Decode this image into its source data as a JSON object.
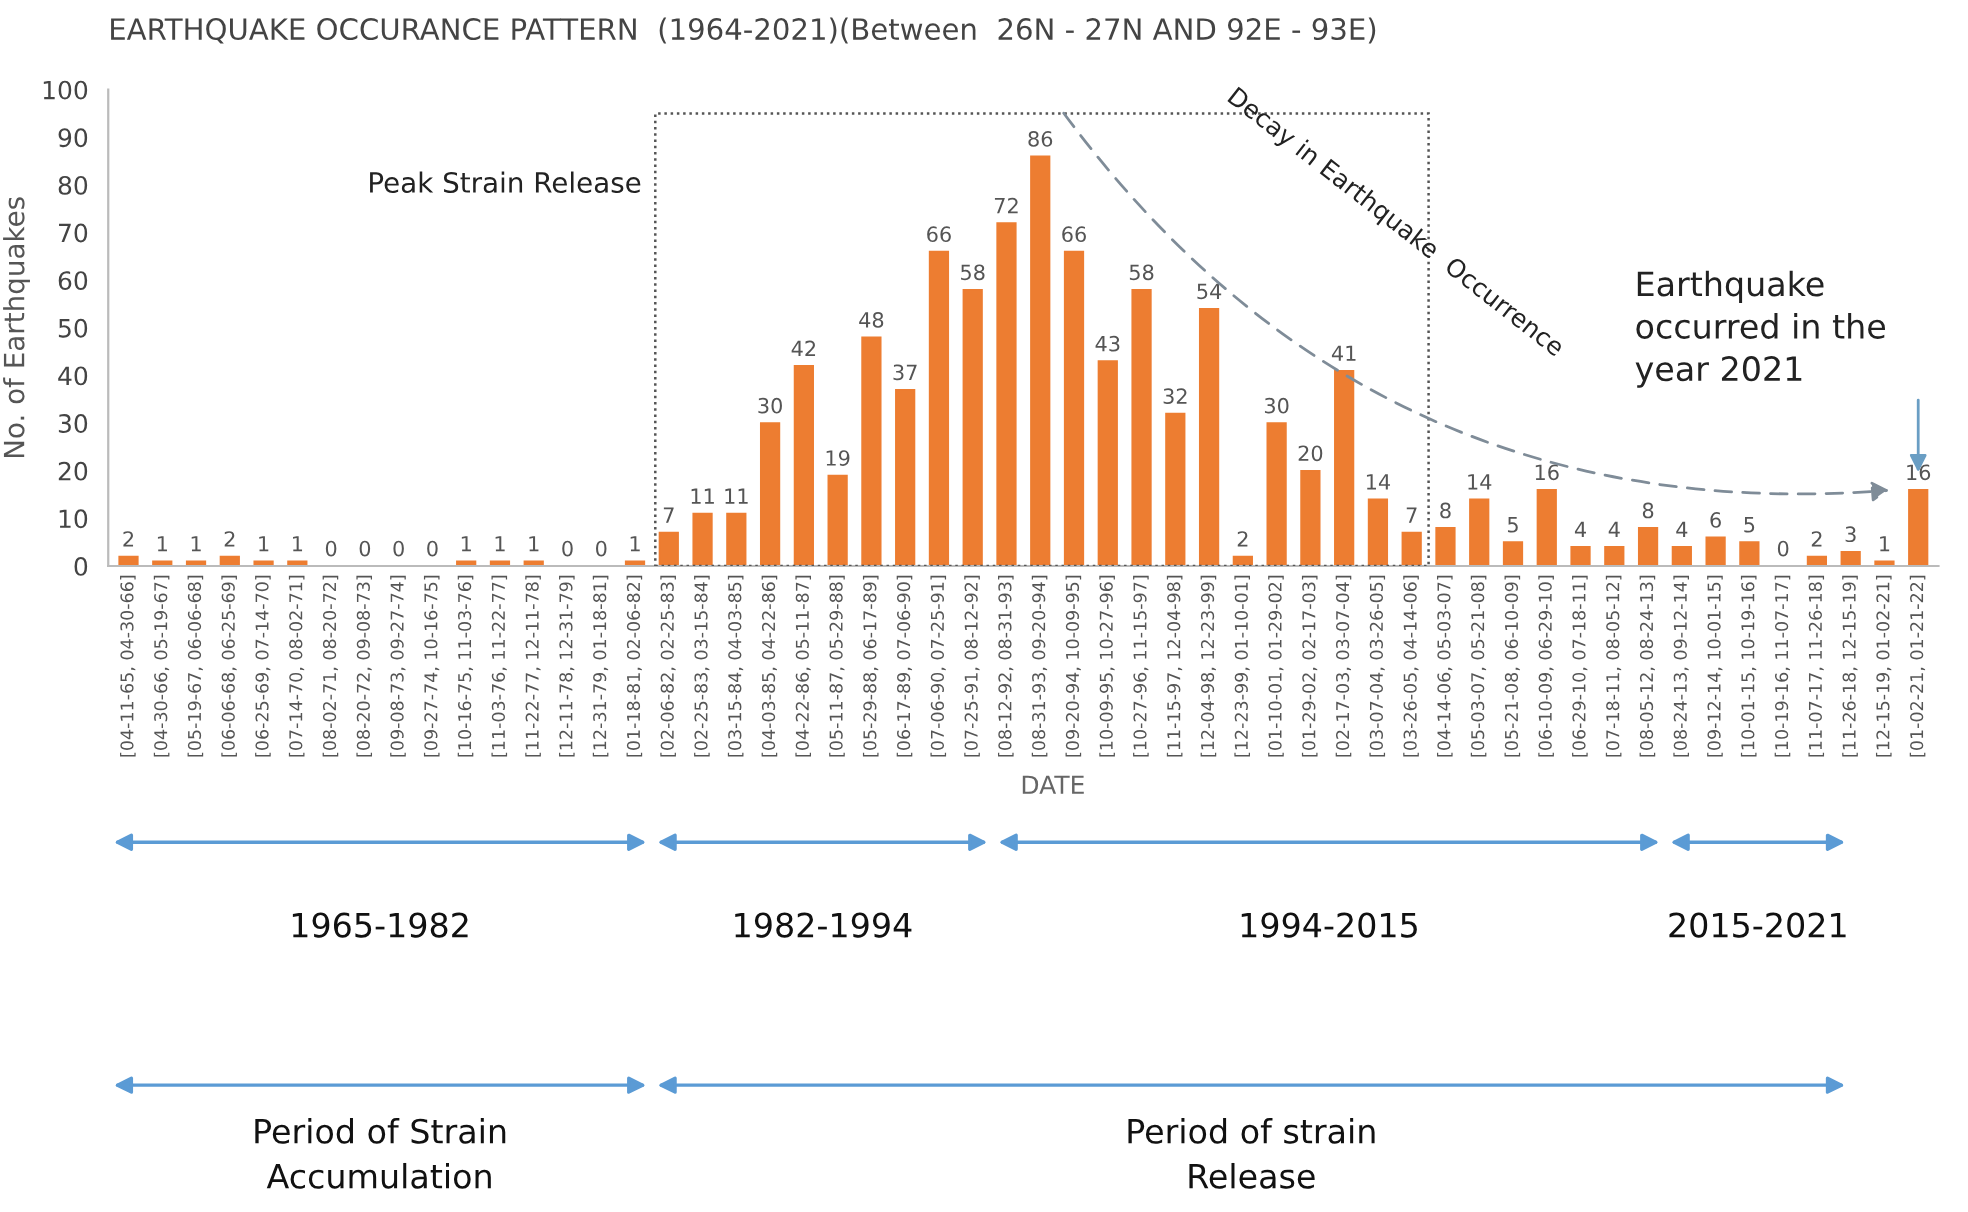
{
  "chart_data": {
    "type": "bar",
    "title": "EARTHQUAKE OCCURANCE PATTERN  (1964-2021)(Between  26N - 27N AND 92E - 93E)",
    "xlabel": "DATE",
    "ylabel": "No. of Earthquakes",
    "categories": [
      "[04-11-65, 04-30-66]",
      "[04-30-66, 05-19-67]",
      "[05-19-67, 06-06-68]",
      "[06-06-68, 06-25-69]",
      "[06-25-69, 07-14-70]",
      "[07-14-70, 08-02-71]",
      "[08-02-71, 08-20-72]",
      "[08-20-72, 09-08-73]",
      "[09-08-73, 09-27-74]",
      "[09-27-74, 10-16-75]",
      "[10-16-75, 11-03-76]",
      "[11-03-76, 11-22-77]",
      "[11-22-77, 12-11-78]",
      "[12-11-78, 12-31-79]",
      "[12-31-79, 01-18-81]",
      "[01-18-81, 02-06-82]",
      "[02-06-82, 02-25-83]",
      "[02-25-83, 03-15-84]",
      "[03-15-84, 04-03-85]",
      "[04-03-85, 04-22-86]",
      "[04-22-86, 05-11-87]",
      "[05-11-87, 05-29-88]",
      "[05-29-88, 06-17-89]",
      "[06-17-89, 07-06-90]",
      "[07-06-90, 07-25-91]",
      "[07-25-91, 08-12-92]",
      "[08-12-92, 08-31-93]",
      "[08-31-93, 09-20-94]",
      "[09-20-94, 10-09-95]",
      "[10-09-95, 10-27-96]",
      "[10-27-96, 11-15-97]",
      "[11-15-97, 12-04-98]",
      "[12-04-98, 12-23-99]",
      "[12-23-99, 01-10-01]",
      "[01-10-01, 01-29-02]",
      "[01-29-02, 02-17-03]",
      "[02-17-03, 03-07-04]",
      "[03-07-04, 03-26-05]",
      "[03-26-05, 04-14-06]",
      "[04-14-06, 05-03-07]",
      "[05-03-07, 05-21-08]",
      "[05-21-08, 06-10-09]",
      "[06-10-09, 06-29-10]",
      "[06-29-10, 07-18-11]",
      "[07-18-11, 08-05-12]",
      "[08-05-12, 08-24-13]",
      "[08-24-13, 09-12-14]",
      "[09-12-14, 10-01-15]",
      "[10-01-15, 10-19-16]",
      "[10-19-16, 11-07-17]",
      "[11-07-17, 11-26-18]",
      "[11-26-18, 12-15-19]",
      "[12-15-19, 01-02-21]",
      "[01-02-21, 01-21-22]"
    ],
    "values": [
      2,
      1,
      1,
      2,
      1,
      1,
      0,
      0,
      0,
      0,
      1,
      1,
      1,
      0,
      0,
      1,
      7,
      11,
      11,
      30,
      42,
      19,
      48,
      37,
      66,
      58,
      72,
      86,
      66,
      43,
      58,
      32,
      54,
      2,
      30,
      20,
      41,
      14,
      7,
      8,
      14,
      5,
      16,
      4,
      4,
      8,
      4,
      6,
      5,
      0,
      2,
      3,
      1,
      16
    ],
    "color": "#ed7d31",
    "ylim": [
      0,
      100
    ],
    "yticks": [
      0,
      10,
      20,
      30,
      40,
      50,
      60,
      70,
      80,
      90,
      100
    ],
    "data_labels": true,
    "annotations": [
      "Peak Strain Release",
      "Decay in Earthquake  Occurrence",
      "Earthquake\noccurred in the\nyear 2021",
      "1965-1982",
      "1982-1994",
      "1994-2015",
      "2015-2021",
      "Period of Strain\nAccumulation",
      "Period of strain\nRelease"
    ]
  }
}
